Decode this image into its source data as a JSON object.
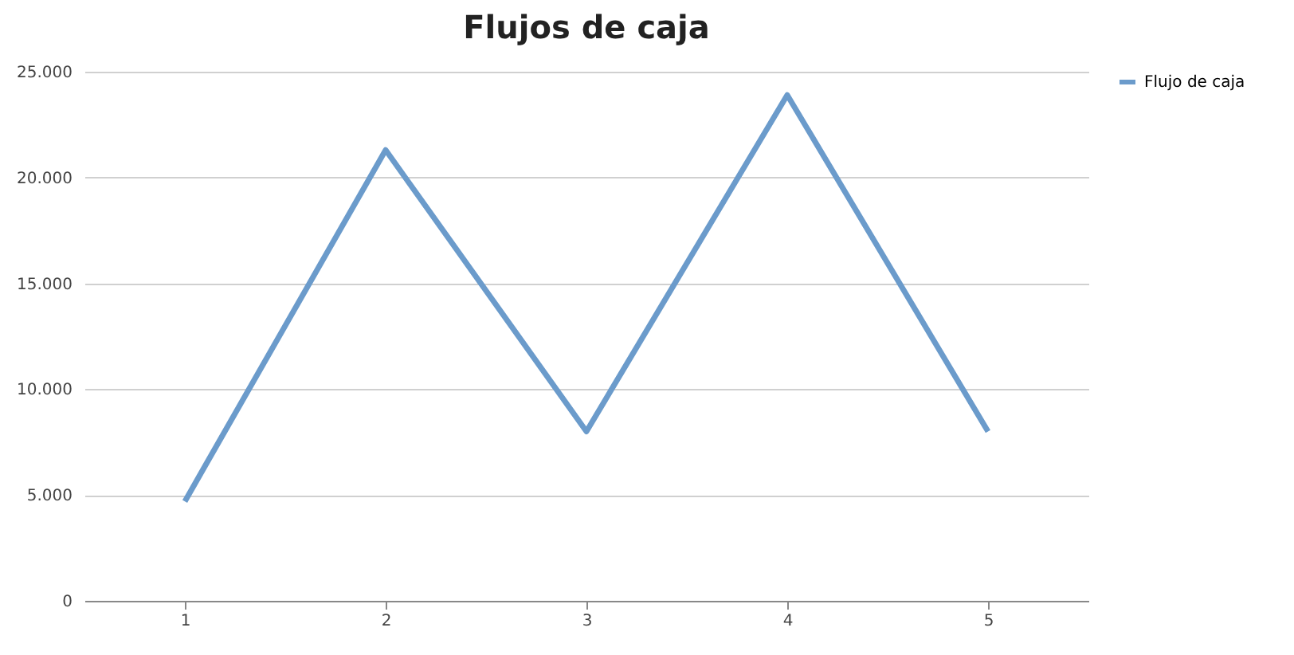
{
  "chart_data": {
    "type": "line",
    "title": "Flujos de caja",
    "categories": [
      "1",
      "2",
      "3",
      "4",
      "5"
    ],
    "series": [
      {
        "name": "Flujo de caja",
        "color": "#6b9bcb",
        "values": [
          4700,
          21300,
          8000,
          23900,
          8000
        ]
      }
    ],
    "ylim": [
      0,
      25000
    ],
    "yticks": [
      {
        "value": 0,
        "label": "0"
      },
      {
        "value": 5000,
        "label": "5.000"
      },
      {
        "value": 10000,
        "label": "10.000"
      },
      {
        "value": 15000,
        "label": "15.000"
      },
      {
        "value": 20000,
        "label": "20.000"
      },
      {
        "value": 25000,
        "label": "25.000"
      }
    ],
    "grid": "y",
    "legend": "right",
    "marker": "none",
    "line_style": "solid"
  }
}
